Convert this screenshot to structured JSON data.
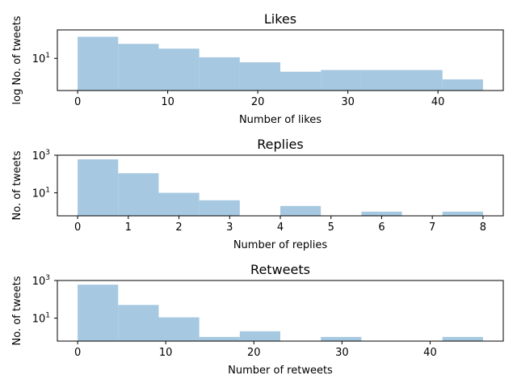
{
  "chart_data": [
    {
      "type": "bar",
      "title": "Likes",
      "xlabel": "Number of likes",
      "ylabel": "log No. of tweets",
      "yscale": "log",
      "ylim": [
        0.55,
        130
      ],
      "xlim": [
        -2.25,
        47.25
      ],
      "xticks": [
        0,
        10,
        20,
        30,
        40
      ],
      "yticks": [
        {
          "value": 10,
          "label": "10",
          "exp": "1"
        }
      ],
      "bar_color": "#a6c8e0",
      "bins": [
        {
          "x0": 0.0,
          "x1": 4.5,
          "value": 70
        },
        {
          "x0": 4.5,
          "x1": 9.0,
          "value": 37
        },
        {
          "x0": 9.0,
          "x1": 13.5,
          "value": 24
        },
        {
          "x0": 13.5,
          "x1": 18.0,
          "value": 11
        },
        {
          "x0": 18.0,
          "x1": 22.5,
          "value": 7
        },
        {
          "x0": 22.5,
          "x1": 27.0,
          "value": 3
        },
        {
          "x0": 27.0,
          "x1": 31.5,
          "value": 3.5
        },
        {
          "x0": 31.5,
          "x1": 36.0,
          "value": 3.5
        },
        {
          "x0": 36.0,
          "x1": 40.5,
          "value": 3.5
        },
        {
          "x0": 40.5,
          "x1": 45.0,
          "value": 1.5
        }
      ]
    },
    {
      "type": "bar",
      "title": "Replies",
      "xlabel": "Number of replies",
      "ylabel": "No. of tweets",
      "yscale": "log",
      "ylim": [
        0.6,
        1000
      ],
      "xlim": [
        -0.4,
        8.4
      ],
      "xticks": [
        0,
        1,
        2,
        3,
        4,
        5,
        6,
        7,
        8
      ],
      "yticks": [
        {
          "value": 10,
          "label": "10",
          "exp": "1"
        },
        {
          "value": 1000,
          "label": "10",
          "exp": "3"
        }
      ],
      "bar_color": "#a6c8e0",
      "bins": [
        {
          "x0": 0.0,
          "x1": 0.8,
          "value": 600
        },
        {
          "x0": 0.8,
          "x1": 1.6,
          "value": 110
        },
        {
          "x0": 1.6,
          "x1": 2.4,
          "value": 10
        },
        {
          "x0": 2.4,
          "x1": 3.2,
          "value": 4
        },
        {
          "x0": 3.2,
          "x1": 4.0,
          "value": 0
        },
        {
          "x0": 4.0,
          "x1": 4.8,
          "value": 2
        },
        {
          "x0": 4.8,
          "x1": 5.6,
          "value": 0
        },
        {
          "x0": 5.6,
          "x1": 6.4,
          "value": 1
        },
        {
          "x0": 6.4,
          "x1": 7.2,
          "value": 0
        },
        {
          "x0": 7.2,
          "x1": 8.0,
          "value": 1
        }
      ]
    },
    {
      "type": "bar",
      "title": "Retweets",
      "xlabel": "Number of retweets",
      "ylabel": "No. of tweets",
      "yscale": "log",
      "ylim": [
        0.6,
        1000
      ],
      "xlim": [
        -2.3,
        48.3
      ],
      "xticks": [
        0,
        10,
        20,
        30,
        40
      ],
      "yticks": [
        {
          "value": 10,
          "label": "10",
          "exp": "1"
        },
        {
          "value": 1000,
          "label": "10",
          "exp": "3"
        }
      ],
      "bar_color": "#a6c8e0",
      "bins": [
        {
          "x0": 0.0,
          "x1": 4.6,
          "value": 600
        },
        {
          "x0": 4.6,
          "x1": 9.2,
          "value": 50
        },
        {
          "x0": 9.2,
          "x1": 13.8,
          "value": 11
        },
        {
          "x0": 13.8,
          "x1": 18.4,
          "value": 1
        },
        {
          "x0": 18.4,
          "x1": 23.0,
          "value": 2
        },
        {
          "x0": 23.0,
          "x1": 27.6,
          "value": 0
        },
        {
          "x0": 27.6,
          "x1": 32.2,
          "value": 1
        },
        {
          "x0": 32.2,
          "x1": 36.8,
          "value": 0
        },
        {
          "x0": 36.8,
          "x1": 41.4,
          "value": 0
        },
        {
          "x0": 41.4,
          "x1": 46.0,
          "value": 1
        }
      ]
    }
  ]
}
